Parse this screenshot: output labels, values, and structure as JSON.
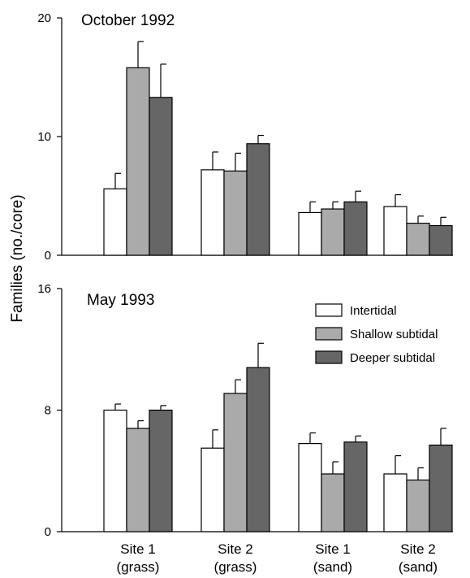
{
  "chart_data": [
    {
      "type": "bar",
      "title": "October 1992",
      "categories": [
        "Site 1\n(grass)",
        "Site 2\n(grass)",
        "Site 1\n(sand)",
        "Site 2\n(sand)"
      ],
      "ylim": [
        0,
        20
      ],
      "yticks": [
        "0",
        "10",
        "20"
      ],
      "error_bars": true,
      "series": [
        {
          "name": "Intertidal",
          "color": "#ffffff",
          "values": [
            5.6,
            7.2,
            3.6,
            4.1
          ],
          "errors": [
            1.3,
            1.5,
            0.9,
            1.0
          ]
        },
        {
          "name": "Shallow subtidal",
          "color": "#aaaaaa",
          "values": [
            15.8,
            7.1,
            3.9,
            2.7
          ],
          "errors": [
            2.2,
            1.5,
            0.6,
            0.6
          ]
        },
        {
          "name": "Deeper subtidal",
          "color": "#666666",
          "values": [
            13.3,
            9.4,
            4.5,
            2.5
          ],
          "errors": [
            2.8,
            0.7,
            0.9,
            0.7
          ]
        }
      ]
    },
    {
      "type": "bar",
      "title": "May 1993",
      "categories": [
        "Site 1\n(grass)",
        "Site 2\n(grass)",
        "Site 1\n(sand)",
        "Site 2\n(sand)"
      ],
      "ylim": [
        0,
        16
      ],
      "yticks": [
        "0",
        "8",
        "16"
      ],
      "error_bars": true,
      "legend_placement": "top-right",
      "series": [
        {
          "name": "Intertidal",
          "color": "#ffffff",
          "values": [
            8.0,
            5.5,
            5.8,
            3.8
          ],
          "errors": [
            0.4,
            1.2,
            0.7,
            1.2
          ]
        },
        {
          "name": "Shallow subtidal",
          "color": "#aaaaaa",
          "values": [
            6.8,
            9.1,
            3.8,
            3.4
          ],
          "errors": [
            0.5,
            0.9,
            0.8,
            0.8
          ]
        },
        {
          "name": "Deeper subtidal",
          "color": "#666666",
          "values": [
            8.0,
            10.8,
            5.9,
            5.7
          ],
          "errors": [
            0.3,
            1.6,
            0.4,
            1.1
          ]
        }
      ]
    }
  ],
  "shared_ylabel": "Families (no./core)",
  "category_labels": [
    {
      "line1": "Site 1",
      "line2": "(grass)"
    },
    {
      "line1": "Site 2",
      "line2": "(grass)"
    },
    {
      "line1": "Site 1",
      "line2": "(sand)"
    },
    {
      "line1": "Site 2",
      "line2": "(sand)"
    }
  ],
  "legend": [
    {
      "label": "Intertidal",
      "color": "#ffffff"
    },
    {
      "label": "Shallow subtidal",
      "color": "#aaaaaa"
    },
    {
      "label": "Deeper subtidal",
      "color": "#666666"
    }
  ]
}
